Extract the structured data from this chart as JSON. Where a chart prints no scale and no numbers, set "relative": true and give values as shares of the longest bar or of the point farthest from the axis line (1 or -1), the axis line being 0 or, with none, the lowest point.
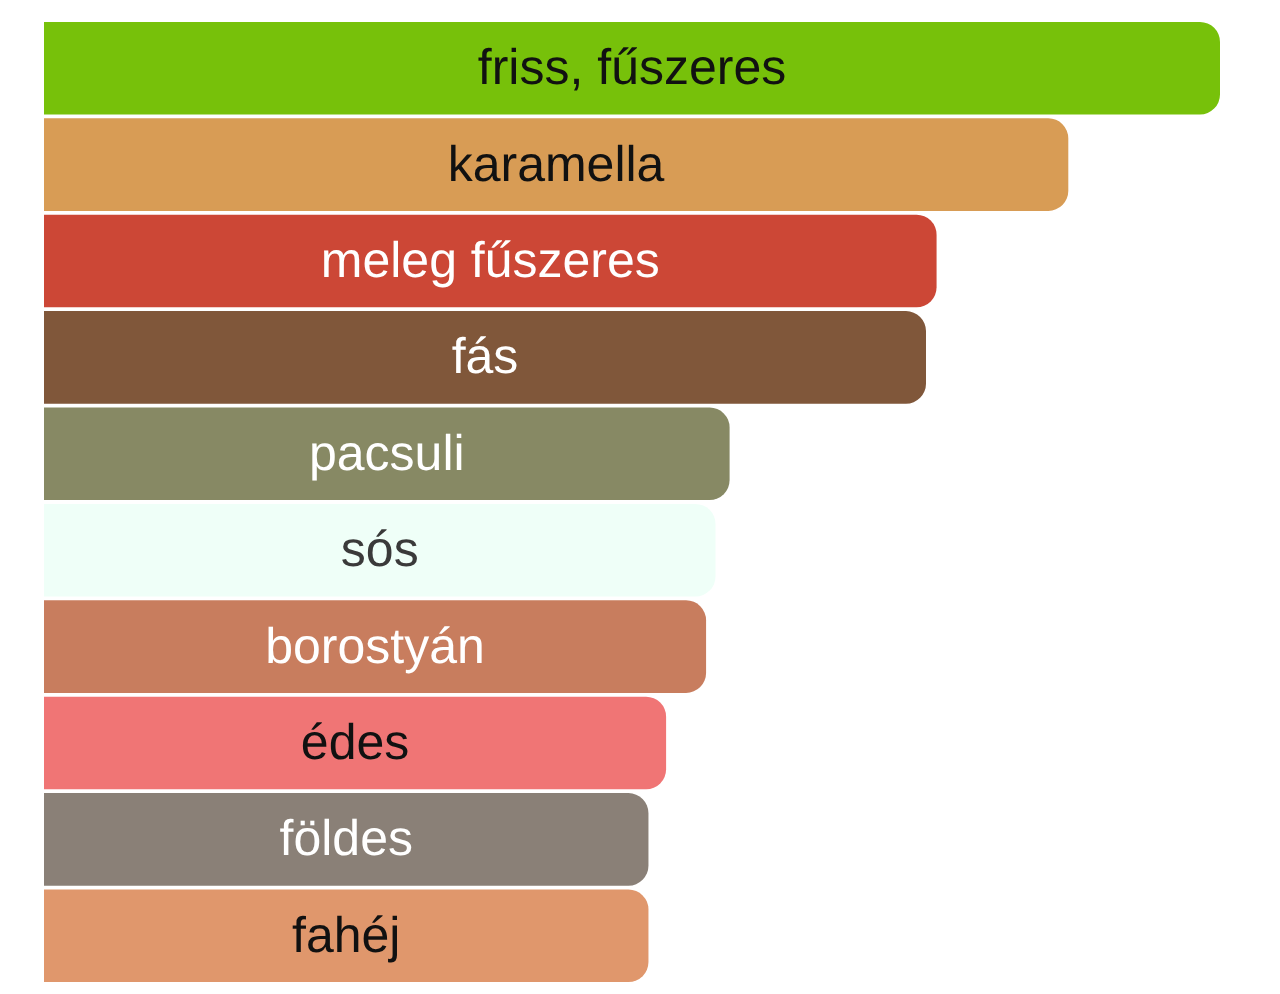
{
  "chart_data": {
    "type": "bar",
    "orientation": "horizontal",
    "relative": true,
    "tick_labels": false,
    "legend": false,
    "categories": [
      "friss, fűszeres",
      "karamella",
      "meleg fűszeres",
      "fás",
      "pacsuli",
      "sós",
      "borostyán",
      "édes",
      "földes",
      "fahéj"
    ],
    "values": [
      1,
      0.871,
      0.759,
      0.75,
      0.583,
      0.571,
      0.563,
      0.529,
      0.514,
      0.514
    ],
    "colors": [
      "#77c10a",
      "#d89c55",
      "#cc4736",
      "#80573a",
      "#878964",
      "#effff8",
      "#c87d5e",
      "#f07575",
      "#8a8077",
      "#e0976c"
    ]
  }
}
